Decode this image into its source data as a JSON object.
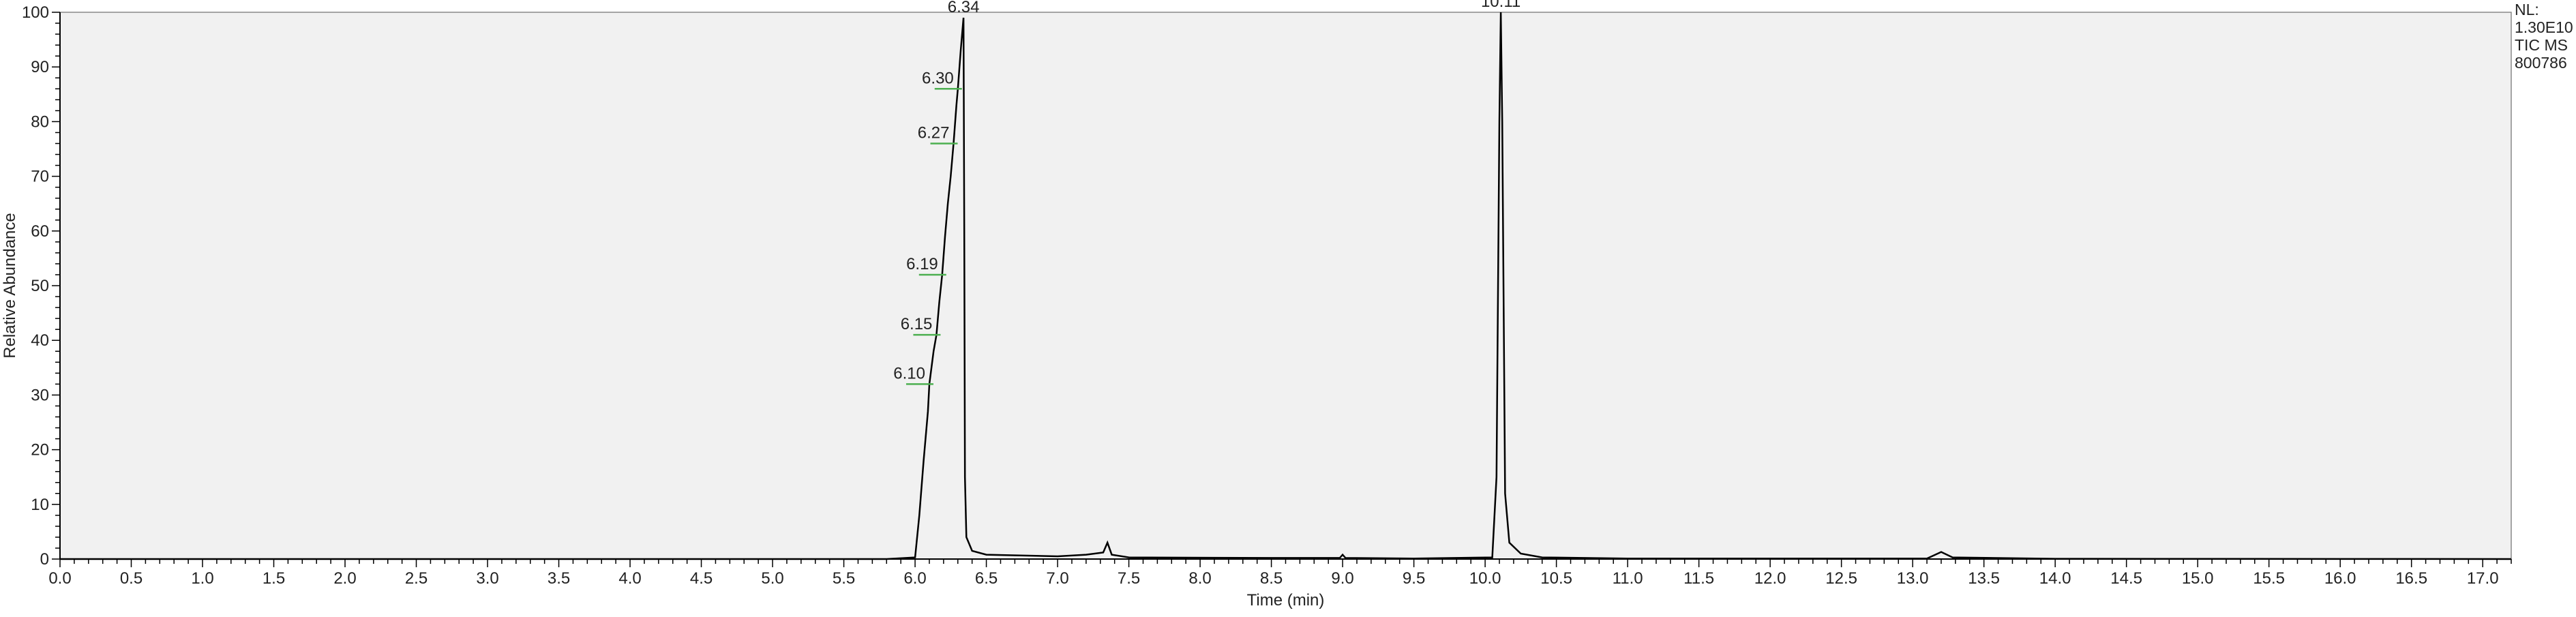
{
  "chart_data": {
    "type": "line",
    "xlabel": "Time (min)",
    "ylabel": "Relative Abundance",
    "xlim": [
      0.0,
      17.2
    ],
    "ylim": [
      0,
      100
    ],
    "x_ticks": [
      "0.0",
      "0.5",
      "1.0",
      "1.5",
      "2.0",
      "2.5",
      "3.0",
      "3.5",
      "4.0",
      "4.5",
      "5.0",
      "5.5",
      "6.0",
      "6.5",
      "7.0",
      "7.5",
      "8.0",
      "8.5",
      "9.0",
      "9.5",
      "10.0",
      "10.5",
      "11.0",
      "11.5",
      "12.0",
      "12.5",
      "13.0",
      "13.5",
      "14.0",
      "14.5",
      "15.0",
      "15.5",
      "16.0",
      "16.5",
      "17.0"
    ],
    "y_ticks": [
      "0",
      "10",
      "20",
      "30",
      "40",
      "50",
      "60",
      "70",
      "80",
      "90",
      "100"
    ],
    "info": [
      "NL:",
      "1.30E10",
      "TIC  MS",
      "800786"
    ],
    "peak_labels": [
      {
        "text": "6.34",
        "x": 6.34,
        "y": 99
      },
      {
        "text": "10.11",
        "x": 10.11,
        "y": 100
      },
      {
        "text": "6.30",
        "x": 6.3,
        "y": 86
      },
      {
        "text": "6.27",
        "x": 6.27,
        "y": 76
      },
      {
        "text": "6.19",
        "x": 6.19,
        "y": 52
      },
      {
        "text": "6.15",
        "x": 6.15,
        "y": 41
      },
      {
        "text": "6.10",
        "x": 6.1,
        "y": 32
      }
    ],
    "series": [
      {
        "points": [
          [
            0.0,
            0
          ],
          [
            5.8,
            0
          ],
          [
            6.0,
            0.3
          ],
          [
            6.03,
            8
          ],
          [
            6.06,
            18
          ],
          [
            6.09,
            27
          ],
          [
            6.1,
            32
          ],
          [
            6.13,
            38
          ],
          [
            6.15,
            41
          ],
          [
            6.17,
            47
          ],
          [
            6.19,
            52
          ],
          [
            6.21,
            59
          ],
          [
            6.23,
            65
          ],
          [
            6.25,
            70
          ],
          [
            6.27,
            76
          ],
          [
            6.29,
            83
          ],
          [
            6.3,
            86
          ],
          [
            6.32,
            93
          ],
          [
            6.34,
            99
          ],
          [
            6.345,
            60
          ],
          [
            6.35,
            15
          ],
          [
            6.36,
            4
          ],
          [
            6.4,
            1.5
          ],
          [
            6.5,
            0.8
          ],
          [
            7.0,
            0.5
          ],
          [
            7.2,
            0.8
          ],
          [
            7.32,
            1.2
          ],
          [
            7.35,
            3
          ],
          [
            7.38,
            0.8
          ],
          [
            7.5,
            0.3
          ],
          [
            8.5,
            0.2
          ],
          [
            8.98,
            0.2
          ],
          [
            9.0,
            0.8
          ],
          [
            9.02,
            0.2
          ],
          [
            9.5,
            0.1
          ],
          [
            10.05,
            0.3
          ],
          [
            10.08,
            15
          ],
          [
            10.1,
            80
          ],
          [
            10.11,
            100
          ],
          [
            10.12,
            80
          ],
          [
            10.14,
            12
          ],
          [
            10.17,
            3
          ],
          [
            10.25,
            1
          ],
          [
            10.4,
            0.3
          ],
          [
            11.0,
            0.1
          ],
          [
            13.1,
            0.1
          ],
          [
            13.2,
            1.3
          ],
          [
            13.28,
            0.3
          ],
          [
            14.0,
            0.05
          ],
          [
            17.2,
            0
          ]
        ]
      }
    ],
    "grid": false,
    "legend": "none"
  },
  "colors": {
    "plot_background": "#f1f1f1",
    "trace": "#000000",
    "annotation_mark": "#4caf50",
    "axis": "#000000"
  }
}
